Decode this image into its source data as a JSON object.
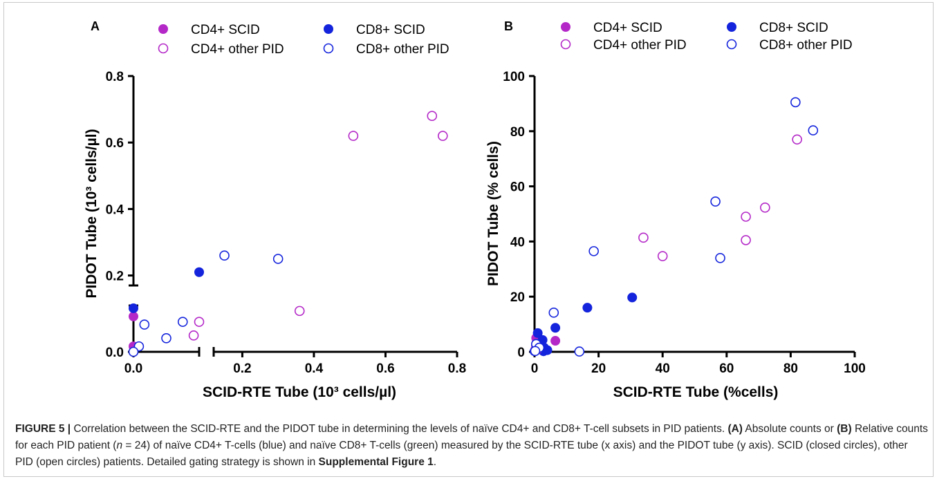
{
  "chart_data": [
    {
      "panel": "A",
      "type": "scatter",
      "xlabel": "SCID-RTE Tube (10³ cells/µl)",
      "ylabel": "PIDOT Tube (10³ cells/µl)",
      "x_ticks": [
        "0.0",
        "0.2",
        "0.4",
        "0.6",
        "0.8"
      ],
      "y_ticks": [
        "0.0",
        "0.2",
        "0.4",
        "0.6",
        "0.8"
      ],
      "xlim": [
        0,
        0.8
      ],
      "ylim": [
        0,
        0.8
      ],
      "broken_axes": true,
      "legend": [
        "CD4+ SCID",
        "CD8+ SCID",
        "CD4+ other PID",
        "CD8+ other PID"
      ],
      "legend_position": "top",
      "series": [
        {
          "name": "CD4+ SCID",
          "color": "#b428c8",
          "filled": true,
          "points": [
            [
              0.0,
              0.13
            ],
            [
              0.0,
              0.02
            ]
          ]
        },
        {
          "name": "CD8+ SCID",
          "color": "#1424dc",
          "filled": true,
          "points": [
            [
              0.0,
              0.16
            ],
            [
              0.12,
              0.21
            ]
          ]
        },
        {
          "name": "CD4+ other PID",
          "color": "#b428c8",
          "filled": false,
          "points": [
            [
              0.73,
              0.68
            ],
            [
              0.51,
              0.62
            ],
            [
              0.76,
              0.62
            ],
            [
              0.36,
              0.15
            ],
            [
              0.12,
              0.11
            ],
            [
              0.11,
              0.06
            ]
          ]
        },
        {
          "name": "CD8+ other PID",
          "color": "#1424dc",
          "filled": false,
          "points": [
            [
              0.15,
              0.26
            ],
            [
              0.3,
              0.25
            ],
            [
              0.09,
              0.11
            ],
            [
              0.02,
              0.1
            ],
            [
              0.06,
              0.05
            ],
            [
              0.01,
              0.02
            ],
            [
              0.0,
              0.0
            ]
          ]
        }
      ]
    },
    {
      "panel": "B",
      "type": "scatter",
      "xlabel": "SCID-RTE Tube (%cells)",
      "ylabel": "PIDOT Tube (% cells)",
      "x_ticks": [
        "0",
        "20",
        "40",
        "60",
        "80",
        "100"
      ],
      "y_ticks": [
        "0",
        "20",
        "40",
        "60",
        "80",
        "100"
      ],
      "xlim": [
        0,
        100
      ],
      "ylim": [
        0,
        100
      ],
      "legend": [
        "CD4+ SCID",
        "CD8+ SCID",
        "CD4+ other PID",
        "CD8+ other PID"
      ],
      "legend_position": "top",
      "series": [
        {
          "name": "CD4+ SCID",
          "color": "#b428c8",
          "filled": true,
          "points": [
            [
              6.5,
              4
            ],
            [
              0.5,
              5
            ],
            [
              0.3,
              1
            ]
          ]
        },
        {
          "name": "CD8+ SCID",
          "color": "#1424dc",
          "filled": true,
          "points": [
            [
              30.5,
              19.7
            ],
            [
              16.5,
              16
            ],
            [
              6.5,
              8.7
            ],
            [
              1.0,
              6.8
            ],
            [
              2.5,
              4.3
            ],
            [
              3.0,
              1.5
            ],
            [
              4.0,
              0.6
            ],
            [
              2.8,
              0.2
            ],
            [
              0.0,
              0.2
            ]
          ]
        },
        {
          "name": "CD4+ other PID",
          "color": "#b428c8",
          "filled": false,
          "points": [
            [
              82,
              77
            ],
            [
              72,
              52.3
            ],
            [
              66,
              49
            ],
            [
              66,
              40.5
            ],
            [
              34,
              41.4
            ],
            [
              40,
              34.7
            ],
            [
              0.5,
              2.5
            ],
            [
              1.0,
              1.0
            ]
          ]
        },
        {
          "name": "CD8+ other PID",
          "color": "#1424dc",
          "filled": false,
          "points": [
            [
              81.5,
              90.5
            ],
            [
              87,
              80.3
            ],
            [
              56.5,
              54.5
            ],
            [
              58,
              34
            ],
            [
              18.5,
              36.5
            ],
            [
              6.0,
              14.2
            ],
            [
              14,
              0.1
            ],
            [
              0.5,
              2.8
            ],
            [
              1.5,
              1.5
            ],
            [
              0.2,
              0.3
            ]
          ]
        }
      ]
    }
  ],
  "caption": {
    "figure_label": "FIGURE 5 |",
    "text_1": " Correlation between the SCID-RTE and the PIDOT tube in determining the levels of naïve CD4+ and CD8+ T-cell subsets in PID patients. ",
    "panel_a": "(A)",
    "text_2": " Absolute counts or ",
    "panel_b": "(B)",
    "text_3": " Relative counts for each PID patient (",
    "n_italic": "n",
    "text_4": " = 24) of naïve CD4+ T-cells (blue) and naïve CD8+ T-cells (green) measured by the SCID-RTE tube (x axis) and the PIDOT tube (y axis). SCID (closed circles), other PID (open circles) patients. Detailed gating strategy is shown in ",
    "supp_ref": "Supplemental Figure 1",
    "text_5": "."
  }
}
